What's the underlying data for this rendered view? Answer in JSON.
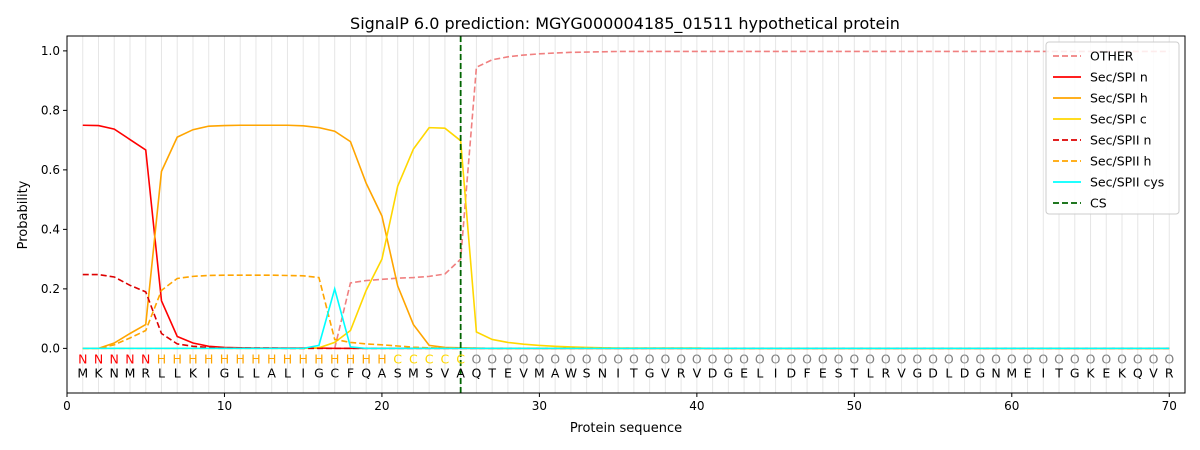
{
  "chart_data": {
    "type": "line",
    "title": "SignalP 6.0 prediction: MGYG000004185_01511 hypothetical protein",
    "xlabel": "Protein sequence",
    "ylabel": "Probability",
    "xlim": [
      0,
      71
    ],
    "ylim": [
      -0.15,
      1.05
    ],
    "x_ticks": [
      0,
      10,
      20,
      30,
      40,
      50,
      60,
      70
    ],
    "y_ticks": [
      0.0,
      0.2,
      0.4,
      0.6,
      0.8,
      1.0
    ],
    "x_tick_labels": [
      "0",
      "10",
      "20",
      "30",
      "40",
      "50",
      "60",
      "70"
    ],
    "y_tick_labels": [
      "0.0",
      "0.2",
      "0.4",
      "0.6",
      "0.8",
      "1.0"
    ],
    "grid": "vertical lines at every residue",
    "legend_position": "top-right",
    "sequence": [
      "M",
      "K",
      "N",
      "M",
      "R",
      "L",
      "L",
      "K",
      "I",
      "G",
      "L",
      "L",
      "A",
      "L",
      "I",
      "G",
      "C",
      "F",
      "Q",
      "A",
      "S",
      "M",
      "S",
      "V",
      "A",
      "Q",
      "T",
      "E",
      "V",
      "M",
      "A",
      "W",
      "S",
      "N",
      "I",
      "T",
      "G",
      "V",
      "R",
      "V",
      "D",
      "G",
      "E",
      "L",
      "I",
      "D",
      "F",
      "E",
      "S",
      "T",
      "L",
      "R",
      "V",
      "G",
      "D",
      "L",
      "D",
      "G",
      "N",
      "M",
      "E",
      "I",
      "T",
      "G",
      "K",
      "E",
      "K",
      "Q",
      "V",
      "R"
    ],
    "region_labels": [
      "N",
      "N",
      "N",
      "N",
      "N",
      "H",
      "H",
      "H",
      "H",
      "H",
      "H",
      "H",
      "H",
      "H",
      "H",
      "H",
      "H",
      "H",
      "H",
      "H",
      "C",
      "C",
      "C",
      "C",
      "C",
      "O",
      "O",
      "O",
      "O",
      "O",
      "O",
      "O",
      "O",
      "O",
      "O",
      "O",
      "O",
      "O",
      "O",
      "O",
      "O",
      "O",
      "O",
      "O",
      "O",
      "O",
      "O",
      "O",
      "O",
      "O",
      "O",
      "O",
      "O",
      "O",
      "O",
      "O",
      "O",
      "O",
      "O",
      "O",
      "O",
      "O",
      "O",
      "O",
      "O",
      "O",
      "O",
      "O",
      "O",
      "O"
    ],
    "region_colors": {
      "N": "#ff0000",
      "H": "#ffa500",
      "C": "#ffd700",
      "O": "#808080"
    },
    "cleavage_site": 25,
    "series": [
      {
        "name": "OTHER",
        "color": "#f08080",
        "dash": "dashed",
        "values": [
          0.0,
          0.0,
          0.0,
          0.0,
          0.0,
          0.0,
          0.0,
          0.0,
          0.0,
          0.0,
          0.0,
          0.0,
          0.0,
          0.0,
          0.0,
          0.0,
          0.0,
          0.22,
          0.228,
          0.232,
          0.236,
          0.238,
          0.242,
          0.25,
          0.3,
          0.945,
          0.97,
          0.98,
          0.986,
          0.99,
          0.993,
          0.995,
          0.996,
          0.997,
          0.998,
          0.998,
          0.998,
          0.998,
          0.998,
          0.998,
          0.998,
          0.998,
          0.998,
          0.998,
          0.998,
          0.998,
          0.998,
          0.998,
          0.998,
          0.998,
          0.998,
          0.998,
          0.998,
          0.998,
          0.998,
          0.998,
          0.998,
          0.998,
          0.998,
          0.998,
          0.998,
          0.998,
          0.998,
          0.998,
          0.998,
          0.998,
          0.998,
          0.998,
          0.998,
          0.998
        ]
      },
      {
        "name": "Sec/SPI n",
        "color": "#ff0000",
        "dash": "solid",
        "values": [
          0.75,
          0.749,
          0.737,
          0.702,
          0.667,
          0.16,
          0.04,
          0.018,
          0.007,
          0.003,
          0.002,
          0.001,
          0.001,
          0.001,
          0.001,
          0.001,
          0.0,
          0.0,
          0.0,
          0.0,
          0.0,
          0.0,
          0.0,
          0.0,
          0.0,
          0.0,
          0.0,
          0.0,
          0.0,
          0.0,
          0.0,
          0.0,
          0.0,
          0.0,
          0.0,
          0.0,
          0.0,
          0.0,
          0.0,
          0.0,
          0.0,
          0.0,
          0.0,
          0.0,
          0.0,
          0.0,
          0.0,
          0.0,
          0.0,
          0.0,
          0.0,
          0.0,
          0.0,
          0.0,
          0.0,
          0.0,
          0.0,
          0.0,
          0.0,
          0.0,
          0.0,
          0.0,
          0.0,
          0.0,
          0.0,
          0.0,
          0.0,
          0.0,
          0.0,
          0.0
        ]
      },
      {
        "name": "Sec/SPI h",
        "color": "#ffa500",
        "dash": "solid",
        "values": [
          0.0,
          0.0,
          0.018,
          0.05,
          0.08,
          0.595,
          0.71,
          0.735,
          0.747,
          0.749,
          0.75,
          0.75,
          0.75,
          0.75,
          0.748,
          0.742,
          0.73,
          0.695,
          0.555,
          0.445,
          0.21,
          0.08,
          0.01,
          0.003,
          0.002,
          0.001,
          0.0,
          0.0,
          0.0,
          0.0,
          0.0,
          0.0,
          0.0,
          0.0,
          0.0,
          0.0,
          0.0,
          0.0,
          0.0,
          0.0,
          0.0,
          0.0,
          0.0,
          0.0,
          0.0,
          0.0,
          0.0,
          0.0,
          0.0,
          0.0,
          0.0,
          0.0,
          0.0,
          0.0,
          0.0,
          0.0,
          0.0,
          0.0,
          0.0,
          0.0,
          0.0,
          0.0,
          0.0,
          0.0,
          0.0,
          0.0,
          0.0,
          0.0,
          0.0,
          0.0
        ]
      },
      {
        "name": "Sec/SPI c",
        "color": "#ffd700",
        "dash": "solid",
        "values": [
          0.0,
          0.0,
          0.0,
          0.0,
          0.0,
          0.0,
          0.0,
          0.0,
          0.0,
          0.0,
          0.0,
          0.0,
          0.0,
          0.0,
          0.0,
          0.002,
          0.02,
          0.06,
          0.195,
          0.3,
          0.545,
          0.67,
          0.742,
          0.74,
          0.698,
          0.055,
          0.03,
          0.02,
          0.014,
          0.01,
          0.007,
          0.005,
          0.003,
          0.002,
          0.001,
          0.001,
          0.001,
          0.001,
          0.001,
          0.001,
          0.0,
          0.0,
          0.0,
          0.0,
          0.0,
          0.0,
          0.0,
          0.0,
          0.0,
          0.0,
          0.0,
          0.0,
          0.0,
          0.0,
          0.0,
          0.0,
          0.0,
          0.0,
          0.0,
          0.0,
          0.0,
          0.0,
          0.0,
          0.0,
          0.0,
          0.0,
          0.0,
          0.0,
          0.0,
          0.0
        ]
      },
      {
        "name": "Sec/SPII n",
        "color": "#dd0000",
        "dash": "dashed",
        "values": [
          0.248,
          0.248,
          0.24,
          0.212,
          0.19,
          0.05,
          0.015,
          0.007,
          0.003,
          0.002,
          0.001,
          0.001,
          0.001,
          0.0,
          0.0,
          0.0,
          0.0,
          0.0,
          0.0,
          0.0,
          0.0,
          0.0,
          0.0,
          0.0,
          0.0,
          0.0,
          0.0,
          0.0,
          0.0,
          0.0,
          0.0,
          0.0,
          0.0,
          0.0,
          0.0,
          0.0,
          0.0,
          0.0,
          0.0,
          0.0,
          0.0,
          0.0,
          0.0,
          0.0,
          0.0,
          0.0,
          0.0,
          0.0,
          0.0,
          0.0,
          0.0,
          0.0,
          0.0,
          0.0,
          0.0,
          0.0,
          0.0,
          0.0,
          0.0,
          0.0,
          0.0,
          0.0,
          0.0,
          0.0,
          0.0,
          0.0,
          0.0,
          0.0,
          0.0,
          0.0
        ]
      },
      {
        "name": "Sec/SPII h",
        "color": "#ffa500",
        "dash": "dashed",
        "values": [
          0.0,
          0.0,
          0.012,
          0.035,
          0.06,
          0.195,
          0.235,
          0.242,
          0.245,
          0.246,
          0.246,
          0.246,
          0.246,
          0.245,
          0.244,
          0.238,
          0.03,
          0.02,
          0.015,
          0.012,
          0.008,
          0.004,
          0.002,
          0.001,
          0.001,
          0.0,
          0.0,
          0.0,
          0.0,
          0.0,
          0.0,
          0.0,
          0.0,
          0.0,
          0.0,
          0.0,
          0.0,
          0.0,
          0.0,
          0.0,
          0.0,
          0.0,
          0.0,
          0.0,
          0.0,
          0.0,
          0.0,
          0.0,
          0.0,
          0.0,
          0.0,
          0.0,
          0.0,
          0.0,
          0.0,
          0.0,
          0.0,
          0.0,
          0.0,
          0.0,
          0.0,
          0.0,
          0.0,
          0.0,
          0.0,
          0.0,
          0.0,
          0.0,
          0.0,
          0.0
        ]
      },
      {
        "name": "Sec/SPII cys",
        "color": "#00ffff",
        "dash": "solid",
        "values": [
          0.0,
          0.0,
          0.0,
          0.0,
          0.0,
          0.0,
          0.0,
          0.0,
          0.0,
          0.0,
          0.0,
          0.0,
          0.0,
          0.0,
          0.0,
          0.01,
          0.2,
          0.005,
          0.0,
          0.0,
          0.0,
          0.0,
          0.0,
          0.0,
          0.0,
          0.0,
          0.0,
          0.0,
          0.0,
          0.0,
          0.0,
          0.0,
          0.0,
          0.0,
          0.0,
          0.0,
          0.0,
          0.0,
          0.0,
          0.0,
          0.0,
          0.0,
          0.0,
          0.0,
          0.0,
          0.0,
          0.0,
          0.0,
          0.0,
          0.0,
          0.0,
          0.0,
          0.0,
          0.0,
          0.0,
          0.0,
          0.0,
          0.0,
          0.0,
          0.0,
          0.0,
          0.0,
          0.0,
          0.0,
          0.0,
          0.0,
          0.0,
          0.0,
          0.0,
          0.0
        ]
      }
    ],
    "cs_legend": {
      "name": "CS",
      "color": "#006400",
      "dash": "dashed"
    }
  }
}
